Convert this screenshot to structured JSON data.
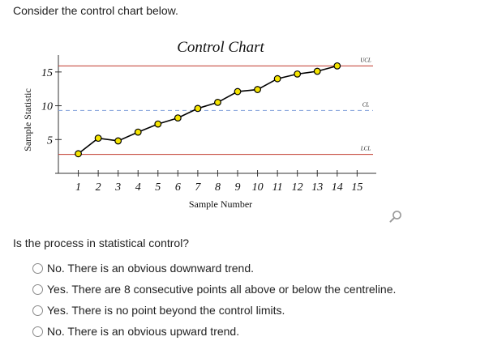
{
  "prompt": "Consider the control chart below.",
  "question": "Is the process in statistical control?",
  "options": [
    "No. There is an obvious downward trend.",
    "Yes. There are 8 consecutive points all above or below the centreline.",
    "Yes. There is no point beyond the control limits.",
    "No. There is an obvious upward trend."
  ],
  "zoom_icon": "magnifier-icon",
  "colors": {
    "limit_line": "#c0392b",
    "center_line": "#7f9fd9",
    "marker_fill": "#f5e400",
    "series": "#000000"
  },
  "chart_data": {
    "type": "line",
    "title": "Control Chart",
    "xlabel": "Sample Number",
    "ylabel": "Sample Statistic",
    "x": [
      1,
      2,
      3,
      4,
      5,
      6,
      7,
      8,
      9,
      10,
      11,
      12,
      13,
      14,
      15
    ],
    "y_ticks": [
      5,
      10,
      15
    ],
    "xlim": [
      0,
      15.8
    ],
    "ylim": [
      0,
      17.5
    ],
    "series": [
      {
        "x": [
          1,
          2,
          3,
          4,
          5,
          6,
          7,
          8,
          9,
          10,
          11,
          12,
          13,
          14
        ],
        "values": [
          2.9,
          5.2,
          4.8,
          6.1,
          7.3,
          8.2,
          9.6,
          10.5,
          12.1,
          12.4,
          14.0,
          14.7,
          15.1,
          15.9
        ]
      }
    ],
    "control_lines": [
      {
        "label": "UCL",
        "value": 15.9,
        "style": "solid"
      },
      {
        "label": "CL",
        "value": 9.3,
        "style": "dashed"
      },
      {
        "label": "LCL",
        "value": 2.8,
        "style": "solid"
      }
    ],
    "grid": false,
    "legend": "none"
  }
}
